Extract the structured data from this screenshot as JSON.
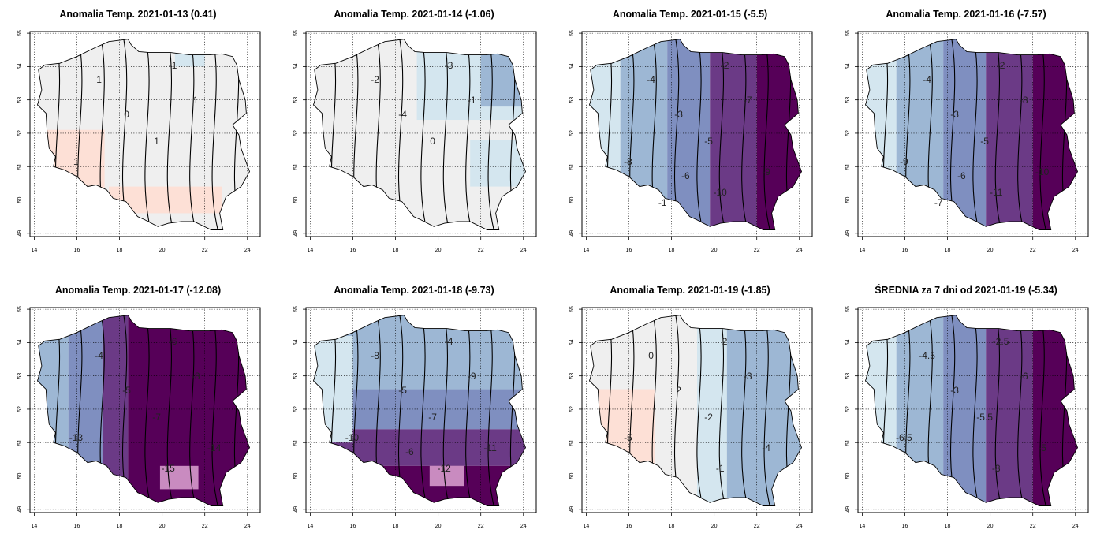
{
  "panels": [
    {
      "title": "Anomalia Temp. 2021-01-13 (0.41)",
      "mean": 0.41,
      "pattern": "flat",
      "contour_labels": [
        "-1",
        "0",
        "1",
        "1",
        "1",
        "1"
      ]
    },
    {
      "title": "Anomalia Temp. 2021-01-14 (-1.06)",
      "mean": -1.06,
      "pattern": "northeast",
      "contour_labels": [
        "-3",
        "-4",
        "-2",
        "0",
        "-1"
      ]
    },
    {
      "title": "Anomalia Temp. 2021-01-15 (-5.5)",
      "mean": -5.5,
      "pattern": "eastward",
      "contour_labels": [
        "-2",
        "-3",
        "-4",
        "-5",
        "-7",
        "-8",
        "-9",
        "-10",
        "-6",
        "-1"
      ]
    },
    {
      "title": "Anomalia Temp. 2021-01-16 (-7.57)",
      "mean": -7.57,
      "pattern": "eastward",
      "contour_labels": [
        "-2",
        "-3",
        "-4",
        "-5",
        "-8",
        "-9",
        "-10",
        "-11",
        "-6",
        "-7"
      ]
    },
    {
      "title": "Anomalia Temp. 2021-01-17 (-12.08)",
      "mean": -12.08,
      "pattern": "west-east",
      "contour_labels": [
        "-6",
        "-5",
        "-4",
        "-7",
        "-8",
        "-13",
        "-14",
        "-15"
      ]
    },
    {
      "title": "Anomalia Temp. 2021-01-18 (-9.73)",
      "mean": -9.73,
      "pattern": "southward",
      "contour_labels": [
        "-4",
        "-5",
        "-8",
        "-7",
        "-9",
        "-10",
        "-11",
        "-12",
        "-6"
      ]
    },
    {
      "title": "Anomalia Temp. 2021-01-19 (-1.85)",
      "mean": -1.85,
      "pattern": "westwarm",
      "contour_labels": [
        "2",
        "2",
        "0",
        "-2",
        "-3",
        "-5",
        "-4",
        "-1"
      ]
    },
    {
      "title": "ŚREDNIA za 7 dni od 2021-01-19 (-5.34)",
      "mean": -5.34,
      "pattern": "eastward",
      "contour_labels": [
        "-2.5",
        "-3",
        "-4.5",
        "-5.5",
        "-6",
        "-6.5",
        "-5",
        "-8"
      ]
    }
  ],
  "axes": {
    "x_ticks": [
      "14",
      "16",
      "18",
      "20",
      "22",
      "24"
    ],
    "y_ticks": [
      "49",
      "50",
      "51",
      "52",
      "53",
      "54",
      "55"
    ],
    "xlim": [
      13.8,
      24.6
    ],
    "ylim": [
      48.9,
      55.05
    ],
    "grid": "dotted"
  },
  "colors": {
    "warm": "#fde0d6",
    "neutral": "#efefef",
    "light_blue": "#d4e6ef",
    "mid_blue": "#9db7d4",
    "steel": "#7f8fc0",
    "purple": "#6b3a86",
    "deep_purple": "#560058",
    "pink_patch": "#c98bc0",
    "contour_line": "#000000"
  }
}
